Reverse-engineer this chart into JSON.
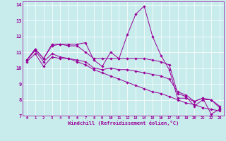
{
  "xlabel": "Windchill (Refroidissement éolien,°C)",
  "bg_color": "#c8ecec",
  "line_color": "#990099",
  "grid_color": "#ffffff",
  "xlim": [
    -0.5,
    23.5
  ],
  "ylim": [
    7,
    14.2
  ],
  "xticks": [
    0,
    1,
    2,
    3,
    4,
    5,
    6,
    7,
    8,
    9,
    10,
    11,
    12,
    13,
    14,
    15,
    16,
    17,
    18,
    19,
    20,
    21,
    22,
    23
  ],
  "yticks": [
    7,
    8,
    9,
    10,
    11,
    12,
    13,
    14
  ],
  "series1_x": [
    0,
    1,
    2,
    3,
    4,
    5,
    6,
    7,
    8,
    9,
    10,
    11,
    12,
    13,
    14,
    15,
    16,
    17,
    18,
    19,
    20,
    21,
    22,
    23
  ],
  "series1_y": [
    10.5,
    11.2,
    10.6,
    11.5,
    11.5,
    11.5,
    11.5,
    11.6,
    10.5,
    10.1,
    11.0,
    10.6,
    12.1,
    13.4,
    13.9,
    12.0,
    10.8,
    9.9,
    8.1,
    8.1,
    7.9,
    8.1,
    7.1,
    7.4
  ],
  "series2_x": [
    0,
    1,
    2,
    3,
    4,
    5,
    6,
    7,
    8,
    9,
    10,
    11,
    12,
    13,
    14,
    15,
    16,
    17,
    18,
    19,
    20,
    21,
    22,
    23
  ],
  "series2_y": [
    10.5,
    11.2,
    10.6,
    11.4,
    11.5,
    11.4,
    11.4,
    11.0,
    10.6,
    10.6,
    10.6,
    10.6,
    10.6,
    10.6,
    10.6,
    10.5,
    10.4,
    10.2,
    8.4,
    8.2,
    7.6,
    8.0,
    8.0,
    7.5
  ],
  "series3_x": [
    0,
    1,
    2,
    3,
    4,
    5,
    6,
    7,
    8,
    9,
    10,
    11,
    12,
    13,
    14,
    15,
    16,
    17,
    18,
    19,
    20,
    21,
    22,
    23
  ],
  "series3_y": [
    10.4,
    10.9,
    10.1,
    10.7,
    10.6,
    10.6,
    10.5,
    10.4,
    10.0,
    9.9,
    10.0,
    9.9,
    9.9,
    9.8,
    9.7,
    9.6,
    9.5,
    9.3,
    8.5,
    8.3,
    7.9,
    8.1,
    8.0,
    7.6
  ],
  "series4_x": [
    0,
    1,
    2,
    3,
    4,
    5,
    6,
    7,
    8,
    9,
    10,
    11,
    12,
    13,
    14,
    15,
    16,
    17,
    18,
    19,
    20,
    21,
    22,
    23
  ],
  "series4_y": [
    10.5,
    11.1,
    10.4,
    10.9,
    10.7,
    10.6,
    10.4,
    10.2,
    9.9,
    9.7,
    9.5,
    9.3,
    9.1,
    8.9,
    8.7,
    8.5,
    8.4,
    8.2,
    8.0,
    7.8,
    7.7,
    7.5,
    7.4,
    7.3
  ]
}
